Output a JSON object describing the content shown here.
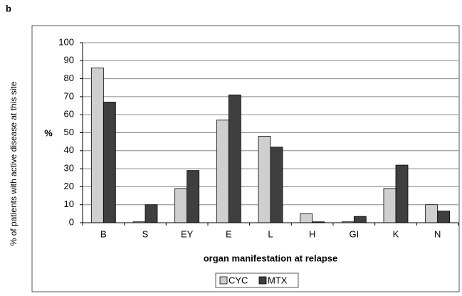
{
  "chart_data": {
    "type": "bar",
    "panel_label": "b",
    "y_label": "% of patients with active disease at this site",
    "y_unit_label": "%",
    "x_label": "organ manifestation at relapse",
    "categories": [
      "B",
      "S",
      "EY",
      "E",
      "L",
      "H",
      "GI",
      "K",
      "N"
    ],
    "series": [
      {
        "name": "CYC",
        "color": "#cfcfcf",
        "values": [
          86,
          0.5,
          19,
          57,
          48,
          5,
          0.5,
          19,
          10
        ]
      },
      {
        "name": "MTX",
        "color": "#3f3f3f",
        "values": [
          67,
          10,
          29,
          71,
          42,
          0.5,
          3.5,
          32,
          6.5
        ]
      }
    ],
    "ylim": [
      0,
      100
    ],
    "yticks": [
      0,
      10,
      20,
      30,
      40,
      50,
      60,
      70,
      80,
      90,
      100
    ],
    "grid": true,
    "legend": "bottom"
  }
}
